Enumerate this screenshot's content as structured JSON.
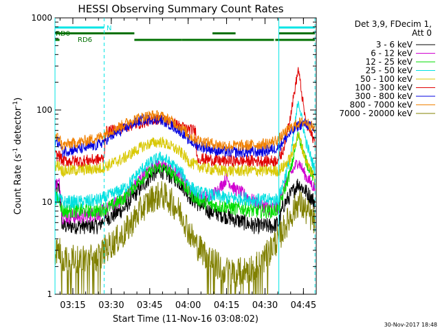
{
  "chart_data": {
    "type": "line",
    "title": "HESSI Observing Summary Count Rates",
    "xlabel": "Start Time (11-Nov-16 03:08:02)",
    "ylabel_main": "Count Rate (s",
    "ylabel_sup1": "-1",
    "ylabel_mid": " detector",
    "ylabel_sup2": "-1",
    "ylabel_end": ")",
    "footer_date": "30-Nov-2017 18:48",
    "y_scale": "log",
    "ylim": [
      1,
      1000
    ],
    "y_ticks": [
      {
        "value": 1,
        "label": "1"
      },
      {
        "value": 10,
        "label": "10"
      },
      {
        "value": 100,
        "label": "100"
      },
      {
        "value": 1000,
        "label": "1000"
      }
    ],
    "xlim_minutes": [
      188.03,
      290.0
    ],
    "x_ticks": [
      {
        "value": 195,
        "label": "03:15"
      },
      {
        "value": 210,
        "label": "03:30"
      },
      {
        "value": 225,
        "label": "03:45"
      },
      {
        "value": 240,
        "label": "04:00"
      },
      {
        "value": 255,
        "label": "04:15"
      },
      {
        "value": 270,
        "label": "04:30"
      },
      {
        "value": 285,
        "label": "04:45"
      }
    ],
    "legend": {
      "header_lines": [
        "Det 3,9, FDecim 1,",
        "Att 0"
      ],
      "placement": "right"
    },
    "flags": {
      "night_label": "N",
      "rd0_label": "RD0",
      "rd6_label": "RD6",
      "night_color": "#00e5e5",
      "rd_color": "#007000",
      "night_segments": [
        [
          188.03,
          207.2
        ],
        [
          275.4,
          289.5
        ]
      ],
      "rd0_segments": [
        [
          188.03,
          207.2
        ],
        [
          207.2,
          219.0
        ],
        [
          249.5,
          258.5
        ],
        [
          275.4,
          289.5
        ]
      ],
      "rd6_segments": [
        [
          188.03,
          189.8
        ],
        [
          219.0,
          237.6
        ],
        [
          237.6,
          273.5
        ],
        [
          274.0,
          289.5
        ]
      ]
    },
    "boundaries": {
      "solid": [
        188.03,
        275.4
      ],
      "dashed": [
        207.2,
        289.5
      ],
      "color": "#00e5e5"
    },
    "series": [
      {
        "name": "3 - 6 keV",
        "color": "#000000",
        "x": [
          188.03,
          189.8,
          190.8,
          192,
          198,
          205,
          207.2,
          210,
          215,
          218,
          222,
          226,
          229.5,
          232,
          235,
          238,
          240,
          243,
          248,
          252,
          255,
          258,
          262,
          266,
          270,
          272,
          273.5,
          275.4,
          277,
          280,
          283,
          286,
          289.5
        ],
        "y": [
          14,
          14,
          5.5,
          5.5,
          5.5,
          5.5,
          6.5,
          7,
          8.5,
          11,
          15,
          20,
          22,
          20,
          18,
          15,
          12,
          10,
          8,
          7.5,
          7,
          6.5,
          6,
          5.5,
          5.5,
          5.5,
          5.5,
          6,
          9,
          12,
          16,
          13,
          10
        ]
      },
      {
        "name": "6 - 12 keV",
        "color": "#d000d0",
        "x": [
          188.03,
          189.8,
          190.8,
          192,
          198,
          205,
          207.2,
          210,
          215,
          218,
          222,
          226,
          229.5,
          232,
          235,
          238,
          240,
          243,
          248,
          252,
          255,
          258,
          262,
          266,
          270,
          272,
          273.5,
          275.4,
          277,
          280,
          283,
          286,
          289.5
        ],
        "y": [
          16,
          16,
          7,
          7,
          7,
          7.5,
          8,
          9,
          11,
          14,
          19,
          24,
          26,
          24,
          21,
          18,
          14,
          12,
          11,
          14,
          18,
          14,
          12,
          10,
          9,
          8.5,
          8.5,
          9,
          14,
          20,
          28,
          19,
          14
        ]
      },
      {
        "name": "12 - 25 keV",
        "color": "#00dd00",
        "x": [
          188.03,
          189.8,
          190.8,
          192,
          198,
          205,
          207.2,
          210,
          215,
          218,
          222,
          226,
          229.5,
          232,
          235,
          238,
          240,
          243,
          248,
          252,
          255,
          258,
          262,
          266,
          270,
          272,
          273.5,
          275.4,
          277,
          280,
          283,
          286,
          289.5
        ],
        "y": [
          11,
          11,
          8,
          8,
          8,
          8,
          8.5,
          9,
          11,
          14,
          18,
          22,
          24,
          22,
          19,
          16,
          13,
          11,
          9.5,
          9,
          9,
          8.5,
          8.5,
          8,
          8,
          8,
          8,
          8.5,
          12,
          22,
          55,
          28,
          17
        ]
      },
      {
        "name": "25 - 50 keV",
        "color": "#00e0e0",
        "x": [
          188.03,
          189.8,
          190.8,
          192,
          198,
          205,
          207.2,
          210,
          215,
          218,
          222,
          226,
          229.5,
          232,
          235,
          238,
          240,
          243,
          248,
          252,
          255,
          258,
          262,
          266,
          270,
          272,
          273.5,
          275.4,
          277,
          280,
          283,
          286,
          289.5
        ],
        "y": [
          11,
          11,
          10,
          10,
          10,
          10.5,
          11,
          12,
          14,
          17,
          23,
          28,
          31,
          28,
          24,
          20,
          16,
          13,
          12,
          11.5,
          11,
          11,
          11,
          10.5,
          10.5,
          10.5,
          10.5,
          11,
          16,
          30,
          130,
          45,
          22
        ]
      },
      {
        "name": "50 - 100 keV",
        "color": "#d8c800",
        "x": [
          188.03,
          189.8,
          190.8,
          192,
          198,
          205,
          207.2,
          210,
          215,
          218,
          222,
          226,
          229.5,
          232,
          235,
          238,
          240,
          243,
          248,
          252,
          255,
          258,
          262,
          266,
          270,
          272,
          273.5,
          275.4,
          277,
          280,
          283,
          286,
          289.5
        ],
        "y": [
          25,
          25,
          22,
          22,
          22.5,
          23,
          24,
          26,
          30,
          34,
          40,
          44,
          45,
          42,
          38,
          33,
          28,
          25,
          23,
          22,
          22,
          22,
          22,
          22,
          22,
          22,
          22,
          22,
          24,
          30,
          55,
          28,
          18
        ]
      },
      {
        "name": "100 - 300 keV",
        "color": "#e00000",
        "x": [
          188.03,
          189.8,
          190.8,
          192,
          198,
          205,
          207.2,
          207.6,
          210,
          215,
          218,
          222,
          226,
          229.5,
          232,
          235,
          238,
          240,
          243,
          243.4,
          248,
          252,
          255,
          258,
          262,
          266,
          270,
          272,
          273.5,
          275.4,
          277,
          280,
          283,
          286,
          289.5
        ],
        "y": [
          32,
          32,
          28,
          28,
          28,
          29,
          30,
          58,
          60,
          64,
          68,
          72,
          78,
          80,
          76,
          70,
          65,
          62,
          60,
          30,
          29,
          28,
          28,
          28,
          28,
          28,
          28,
          28,
          28,
          30,
          36,
          90,
          280,
          70,
          45
        ]
      },
      {
        "name": "300 - 800 keV",
        "color": "#0000e0",
        "x": [
          188.03,
          189.8,
          190.8,
          192,
          198,
          205,
          207.2,
          210,
          215,
          218,
          222,
          226,
          229.5,
          232,
          235,
          238,
          240,
          243,
          248,
          252,
          255,
          258,
          262,
          266,
          270,
          272,
          273.5,
          275.4,
          277,
          280,
          283,
          286,
          289.5
        ],
        "y": [
          45,
          45,
          35,
          36,
          38,
          42,
          46,
          52,
          62,
          70,
          78,
          80,
          78,
          72,
          64,
          56,
          48,
          42,
          38,
          36,
          35,
          35,
          35,
          35,
          36,
          37,
          38,
          40,
          46,
          56,
          68,
          72,
          60
        ]
      },
      {
        "name": "800 - 7000 keV",
        "color": "#f08000",
        "x": [
          188.03,
          189.8,
          190.8,
          192,
          198,
          205,
          207.2,
          210,
          215,
          218,
          222,
          226,
          229.5,
          232,
          235,
          238,
          240,
          243,
          248,
          252,
          255,
          258,
          262,
          266,
          270,
          272,
          273.5,
          275.4,
          277,
          280,
          283,
          286,
          289.5
        ],
        "y": [
          50,
          50,
          40,
          42,
          45,
          50,
          55,
          60,
          70,
          78,
          84,
          88,
          86,
          80,
          72,
          62,
          54,
          48,
          44,
          42,
          41,
          41,
          41,
          42,
          43,
          44,
          46,
          48,
          54,
          64,
          72,
          75,
          62
        ]
      },
      {
        "name": "7000 - 20000 keV",
        "color": "#808000",
        "x": [
          188.03,
          189.8,
          190.8,
          192,
          198,
          205,
          207.2,
          210,
          215,
          218,
          222,
          226,
          229.5,
          232,
          235,
          238,
          240,
          243,
          248,
          252,
          255,
          258,
          262,
          266,
          270,
          272,
          273.5,
          275.4,
          277,
          280,
          283,
          286,
          289.5
        ],
        "y": [
          3,
          3,
          2.4,
          2.4,
          2.4,
          2.5,
          3,
          3.5,
          4.5,
          6,
          8.5,
          11,
          12,
          11,
          9,
          7,
          5,
          3.5,
          2.5,
          2,
          1.8,
          1.7,
          1.8,
          2,
          2.5,
          3,
          3.5,
          4,
          5,
          7,
          10,
          8,
          6
        ]
      }
    ]
  }
}
